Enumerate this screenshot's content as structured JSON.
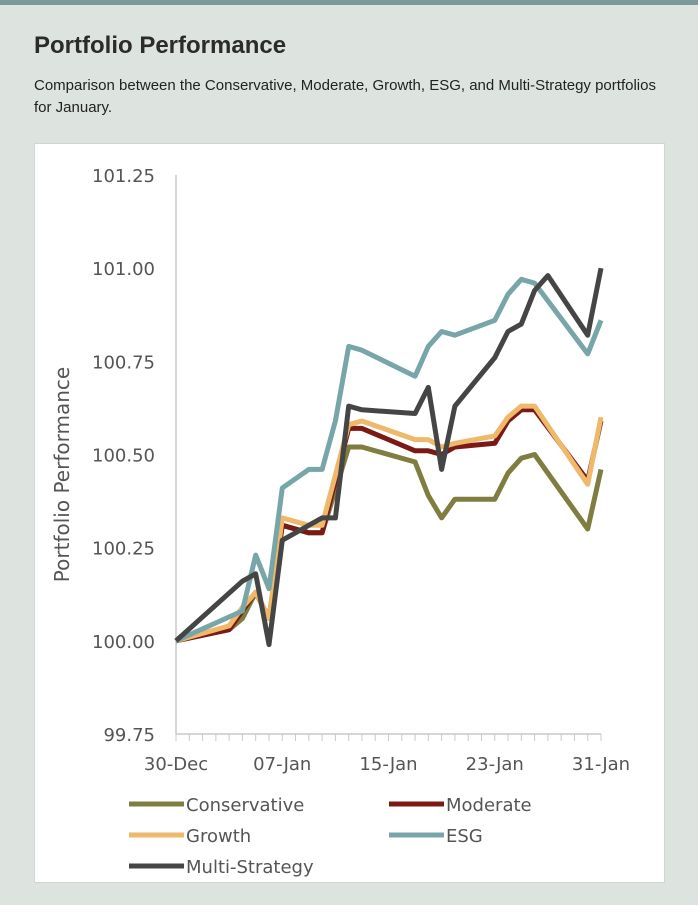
{
  "header": {
    "title": "Portfolio Performance",
    "subtitle": "Comparison between the Conservative, Moderate, Growth, ESG, and Multi-Strategy portfolios for January."
  },
  "chart_data": {
    "type": "line",
    "title": "",
    "xlabel": "",
    "ylabel": "Portfolio Performance",
    "ylim": [
      99.75,
      101.25
    ],
    "yticks": [
      "99.75",
      "100.00",
      "100.25",
      "100.50",
      "100.75",
      "101.00",
      "101.25"
    ],
    "xlim": [
      "2023-12-30",
      "2024-01-31"
    ],
    "xticks": [
      {
        "date": "2023-12-30",
        "label": "30-Dec"
      },
      {
        "date": "2024-01-07",
        "label": "07-Jan"
      },
      {
        "date": "2024-01-15",
        "label": "15-Jan"
      },
      {
        "date": "2024-01-23",
        "label": "23-Jan"
      },
      {
        "date": "2024-01-31",
        "label": "31-Jan"
      }
    ],
    "legend_position": "bottom",
    "series": [
      {
        "name": "Conservative",
        "color": "#7f7d3f",
        "points": [
          [
            "2023-12-30",
            100.0
          ],
          [
            "2024-01-03",
            100.03
          ],
          [
            "2024-01-04",
            100.06
          ],
          [
            "2024-01-05",
            100.13
          ],
          [
            "2024-01-06",
            100.06
          ],
          [
            "2024-01-07",
            100.31
          ],
          [
            "2024-01-09",
            100.29
          ],
          [
            "2024-01-10",
            100.29
          ],
          [
            "2024-01-12",
            100.52
          ],
          [
            "2024-01-13",
            100.52
          ],
          [
            "2024-01-17",
            100.48
          ],
          [
            "2024-01-18",
            100.39
          ],
          [
            "2024-01-19",
            100.33
          ],
          [
            "2024-01-20",
            100.38
          ],
          [
            "2024-01-23",
            100.38
          ],
          [
            "2024-01-24",
            100.45
          ],
          [
            "2024-01-25",
            100.49
          ],
          [
            "2024-01-26",
            100.5
          ],
          [
            "2024-01-30",
            100.3
          ],
          [
            "2024-01-31",
            100.46
          ]
        ]
      },
      {
        "name": "Moderate",
        "color": "#7b1a15",
        "points": [
          [
            "2023-12-30",
            100.0
          ],
          [
            "2024-01-03",
            100.03
          ],
          [
            "2024-01-04",
            100.08
          ],
          [
            "2024-01-05",
            100.13
          ],
          [
            "2024-01-06",
            100.06
          ],
          [
            "2024-01-07",
            100.31
          ],
          [
            "2024-01-09",
            100.29
          ],
          [
            "2024-01-10",
            100.29
          ],
          [
            "2024-01-12",
            100.57
          ],
          [
            "2024-01-13",
            100.57
          ],
          [
            "2024-01-17",
            100.51
          ],
          [
            "2024-01-18",
            100.51
          ],
          [
            "2024-01-19",
            100.5
          ],
          [
            "2024-01-20",
            100.52
          ],
          [
            "2024-01-23",
            100.53
          ],
          [
            "2024-01-24",
            100.59
          ],
          [
            "2024-01-25",
            100.62
          ],
          [
            "2024-01-26",
            100.62
          ],
          [
            "2024-01-30",
            100.43
          ],
          [
            "2024-01-31",
            100.59
          ]
        ]
      },
      {
        "name": "Growth",
        "color": "#eeb96a",
        "points": [
          [
            "2023-12-30",
            100.0
          ],
          [
            "2024-01-03",
            100.04
          ],
          [
            "2024-01-04",
            100.09
          ],
          [
            "2024-01-05",
            100.13
          ],
          [
            "2024-01-06",
            100.06
          ],
          [
            "2024-01-07",
            100.33
          ],
          [
            "2024-01-09",
            100.31
          ],
          [
            "2024-01-10",
            100.31
          ],
          [
            "2024-01-12",
            100.58
          ],
          [
            "2024-01-13",
            100.59
          ],
          [
            "2024-01-17",
            100.54
          ],
          [
            "2024-01-18",
            100.54
          ],
          [
            "2024-01-19",
            100.52
          ],
          [
            "2024-01-20",
            100.53
          ],
          [
            "2024-01-23",
            100.55
          ],
          [
            "2024-01-24",
            100.6
          ],
          [
            "2024-01-25",
            100.63
          ],
          [
            "2024-01-26",
            100.63
          ],
          [
            "2024-01-30",
            100.42
          ],
          [
            "2024-01-31",
            100.6
          ]
        ]
      },
      {
        "name": "ESG",
        "color": "#78a5a8",
        "points": [
          [
            "2023-12-30",
            100.0
          ],
          [
            "2024-01-04",
            100.08
          ],
          [
            "2024-01-05",
            100.23
          ],
          [
            "2024-01-06",
            100.14
          ],
          [
            "2024-01-07",
            100.41
          ],
          [
            "2024-01-09",
            100.46
          ],
          [
            "2024-01-10",
            100.46
          ],
          [
            "2024-01-11",
            100.59
          ],
          [
            "2024-01-12",
            100.79
          ],
          [
            "2024-01-13",
            100.78
          ],
          [
            "2024-01-17",
            100.71
          ],
          [
            "2024-01-18",
            100.79
          ],
          [
            "2024-01-19",
            100.83
          ],
          [
            "2024-01-20",
            100.82
          ],
          [
            "2024-01-23",
            100.86
          ],
          [
            "2024-01-24",
            100.93
          ],
          [
            "2024-01-25",
            100.97
          ],
          [
            "2024-01-26",
            100.96
          ],
          [
            "2024-01-30",
            100.77
          ],
          [
            "2024-01-31",
            100.86
          ]
        ]
      },
      {
        "name": "Multi-Strategy",
        "color": "#454545",
        "points": [
          [
            "2023-12-30",
            100.0
          ],
          [
            "2024-01-04",
            100.16
          ],
          [
            "2024-01-05",
            100.18
          ],
          [
            "2024-01-06",
            99.99
          ],
          [
            "2024-01-07",
            100.27
          ],
          [
            "2024-01-08",
            100.29
          ],
          [
            "2024-01-09",
            100.31
          ],
          [
            "2024-01-10",
            100.33
          ],
          [
            "2024-01-11",
            100.33
          ],
          [
            "2024-01-12",
            100.63
          ],
          [
            "2024-01-13",
            100.62
          ],
          [
            "2024-01-17",
            100.61
          ],
          [
            "2024-01-18",
            100.68
          ],
          [
            "2024-01-19",
            100.46
          ],
          [
            "2024-01-20",
            100.63
          ],
          [
            "2024-01-23",
            100.76
          ],
          [
            "2024-01-24",
            100.83
          ],
          [
            "2024-01-25",
            100.85
          ],
          [
            "2024-01-26",
            100.94
          ],
          [
            "2024-01-27",
            100.98
          ],
          [
            "2024-01-30",
            100.82
          ],
          [
            "2024-01-31",
            101.0
          ]
        ]
      }
    ]
  }
}
